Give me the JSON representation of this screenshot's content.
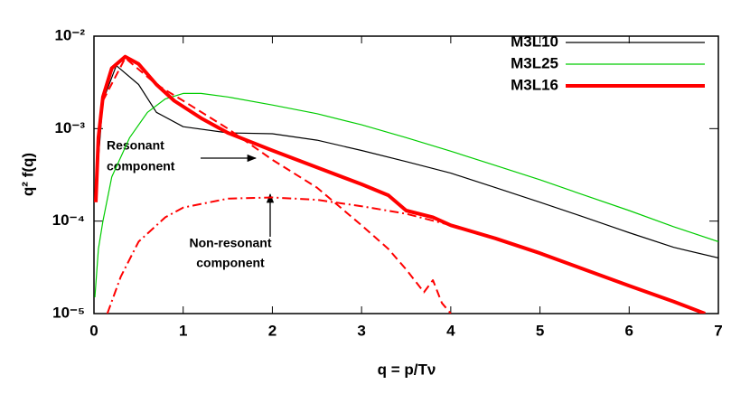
{
  "chart_data": {
    "type": "line",
    "ylabel": "q² f(q)",
    "xlabel": "q = p/Tν",
    "xlim": [
      0,
      7
    ],
    "xticks": [
      0,
      1,
      2,
      3,
      4,
      5,
      6,
      7
    ],
    "ylim": [
      1e-05,
      0.01
    ],
    "y_log": true,
    "yticks": [
      {
        "value": 1e-05,
        "label": "10⁻⁵"
      },
      {
        "value": 0.0001,
        "label": "10⁻⁴"
      },
      {
        "value": 0.001,
        "label": "10⁻³"
      },
      {
        "value": 0.01,
        "label": "10⁻²"
      }
    ],
    "legend": "upper right",
    "annotations": [
      [
        "Resonant",
        "component"
      ],
      [
        "Non-resonant",
        "component"
      ]
    ],
    "series": [
      {
        "name": "M3L10",
        "color": "#000000",
        "style": "thin",
        "x": [
          0.02,
          0.1,
          0.25,
          0.5,
          0.7,
          1.0,
          1.5,
          2.0,
          2.5,
          3,
          3.5,
          4,
          4.5,
          5,
          5.5,
          6,
          6.5,
          7
        ],
        "values": [
          0.0002,
          0.002,
          0.0048,
          0.003,
          0.0015,
          0.00105,
          0.0009,
          0.00088,
          0.00075,
          0.00058,
          0.00044,
          0.00033,
          0.00023,
          0.00016,
          0.00011,
          7.5e-05,
          5.2e-05,
          4e-05
        ]
      },
      {
        "name": "M3L25",
        "color": "#00cc00",
        "style": "thin",
        "x": [
          0.01,
          0.05,
          0.1,
          0.2,
          0.4,
          0.6,
          0.8,
          1.0,
          1.2,
          1.5,
          2,
          2.5,
          3,
          3.5,
          4,
          4.5,
          5,
          5.5,
          6,
          6.5,
          7
        ],
        "values": [
          1.5e-05,
          5e-05,
          0.0001,
          0.0003,
          0.0008,
          0.0015,
          0.0021,
          0.0024,
          0.0024,
          0.0022,
          0.0018,
          0.00145,
          0.0011,
          0.0008,
          0.00057,
          0.0004,
          0.00028,
          0.00019,
          0.00013,
          8.7e-05,
          6e-05
        ]
      },
      {
        "name": "M3L16",
        "color": "#ff0000",
        "style": "thick",
        "x": [
          0.02,
          0.05,
          0.1,
          0.2,
          0.35,
          0.5,
          0.7,
          0.9,
          1.2,
          1.5,
          2,
          2.5,
          3,
          3.3,
          3.5,
          3.8,
          4,
          4.5,
          5,
          5.5,
          6,
          6.5,
          6.85
        ],
        "values": [
          0.00016,
          0.0008,
          0.0022,
          0.0045,
          0.006,
          0.005,
          0.003,
          0.002,
          0.0013,
          0.0009,
          0.00058,
          0.00038,
          0.00025,
          0.00019,
          0.00013,
          0.00011,
          9e-05,
          6.5e-05,
          4.5e-05,
          3e-05,
          2e-05,
          1.35e-05,
          1e-05
        ]
      },
      {
        "color": "#ff0000",
        "style": "dashed",
        "x": [
          0.1,
          0.35,
          0.7,
          1,
          1.5,
          2,
          2.5,
          3,
          3.3,
          3.5,
          3.7,
          3.8,
          3.9,
          4
        ],
        "values": [
          0.002,
          0.0058,
          0.003,
          0.002,
          0.001,
          0.00046,
          0.00023,
          9e-05,
          5e-05,
          3e-05,
          1.7e-05,
          2.3e-05,
          1.3e-05,
          1e-05
        ]
      },
      {
        "color": "#ff0000",
        "style": "dashdot",
        "x": [
          0.15,
          0.3,
          0.5,
          0.8,
          1,
          1.5,
          2,
          2.5,
          3,
          3.5,
          4,
          4.5,
          5,
          5.5,
          6,
          6.5,
          6.85
        ],
        "values": [
          1e-05,
          2.5e-05,
          6e-05,
          0.00011,
          0.00014,
          0.000175,
          0.00018,
          0.00017,
          0.000145,
          0.00012,
          9e-05,
          6.5e-05,
          4.6e-05,
          3e-05,
          2e-05,
          1.35e-05,
          1e-05
        ]
      }
    ]
  }
}
